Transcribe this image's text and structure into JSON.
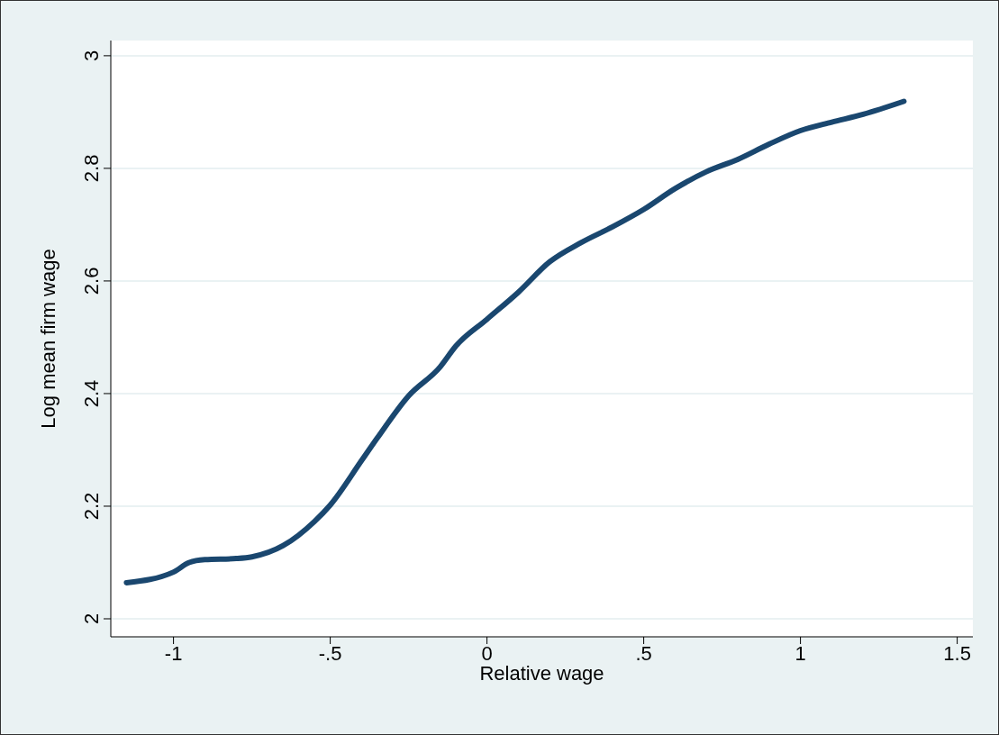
{
  "chart_data": {
    "type": "line",
    "xlabel": "Relative wage",
    "ylabel": "Log mean firm wage",
    "x": [
      -1.15,
      -1.0,
      -0.95,
      -0.9,
      -0.8,
      -0.75,
      -0.65,
      -0.55,
      -0.5,
      -0.4,
      -0.35,
      -0.25,
      -0.15,
      -0.1,
      0,
      0.1,
      0.2,
      0.3,
      0.4,
      0.5,
      0.6,
      0.7,
      0.8,
      0.9,
      1.0,
      1.1,
      1.2,
      1.33
    ],
    "series": [
      {
        "color": "#1a476f",
        "values": [
          2.064,
          2.083,
          2.1,
          2.105,
          2.107,
          2.11,
          2.13,
          2.173,
          2.202,
          2.281,
          2.321,
          2.396,
          2.447,
          2.484,
          2.532,
          2.58,
          2.634,
          2.668,
          2.696,
          2.727,
          2.764,
          2.794,
          2.816,
          2.843,
          2.867,
          2.882,
          2.896,
          2.919
        ]
      }
    ],
    "xlim": [
      -1.2,
      1.55
    ],
    "ylim": [
      1.968,
      3.027
    ],
    "xticks": [
      -1,
      {
        "value": -0.5,
        "label": "-.5"
      },
      0,
      {
        "value": 0.5,
        "label": ".5"
      },
      1,
      1.5
    ],
    "yticks": [
      2,
      2.2,
      2.4,
      2.6,
      2.8,
      3
    ],
    "grid": "y",
    "marker": "none",
    "line_style": "solid"
  }
}
